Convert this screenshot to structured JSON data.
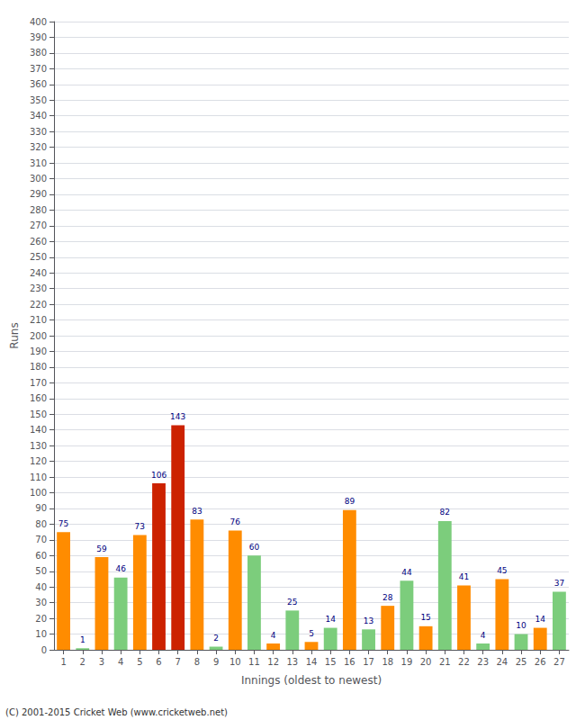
{
  "chart_data": {
    "type": "bar",
    "xlabel": "Innings (oldest to newest)",
    "ylabel": "Runs",
    "annotations": [
      "(C) 2001-2015 Cricket Web (www.cricketweb.net)"
    ],
    "categories": [
      1,
      2,
      3,
      4,
      5,
      6,
      7,
      8,
      9,
      10,
      11,
      12,
      13,
      14,
      15,
      16,
      17,
      18,
      19,
      20,
      21,
      22,
      23,
      24,
      25,
      26,
      27
    ],
    "values": [
      75,
      1,
      59,
      46,
      73,
      106,
      143,
      83,
      2,
      76,
      60,
      4,
      25,
      5,
      14,
      89,
      13,
      28,
      44,
      15,
      82,
      41,
      4,
      45,
      10,
      14,
      37
    ],
    "colors": [
      "#ff8c00",
      "#7ccd7c",
      "#ff8c00",
      "#7ccd7c",
      "#ff8c00",
      "#cc2200",
      "#cc2200",
      "#ff8c00",
      "#7ccd7c",
      "#ff8c00",
      "#7ccd7c",
      "#ff8c00",
      "#7ccd7c",
      "#ff8c00",
      "#7ccd7c",
      "#ff8c00",
      "#7ccd7c",
      "#ff8c00",
      "#7ccd7c",
      "#ff8c00",
      "#7ccd7c",
      "#ff8c00",
      "#7ccd7c",
      "#ff8c00",
      "#7ccd7c",
      "#ff8c00",
      "#7ccd7c"
    ],
    "ylim": [
      0,
      400
    ],
    "yticks": [
      0,
      10,
      20,
      30,
      40,
      50,
      60,
      70,
      80,
      90,
      100,
      110,
      120,
      130,
      140,
      150,
      160,
      170,
      180,
      190,
      200,
      210,
      220,
      230,
      240,
      250,
      260,
      270,
      280,
      290,
      300,
      310,
      320,
      330,
      340,
      350,
      360,
      370,
      380,
      390,
      400
    ],
    "grid": true,
    "data_labels": true
  }
}
